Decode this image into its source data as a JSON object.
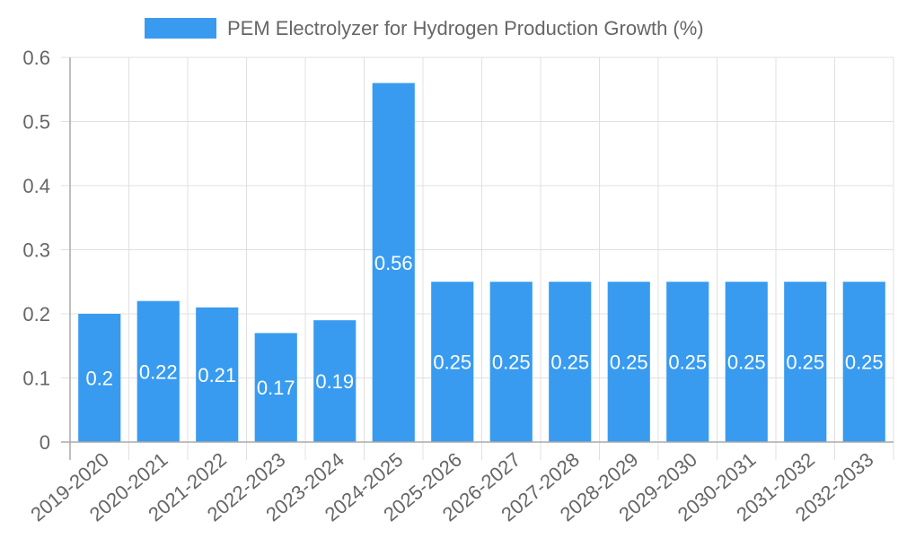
{
  "chart_data": {
    "type": "bar",
    "title": "",
    "xlabel": "",
    "ylabel": "",
    "ylim": [
      0,
      0.6
    ],
    "yticks": [
      "0",
      "0.1",
      "0.2",
      "0.3",
      "0.4",
      "0.5",
      "0.6"
    ],
    "grid": true,
    "legend_position": "top",
    "categories": [
      "2019-2020",
      "2020-2021",
      "2021-2022",
      "2022-2023",
      "2023-2024",
      "2024-2025",
      "2025-2026",
      "2026-2027",
      "2027-2028",
      "2028-2029",
      "2029-2030",
      "2030-2031",
      "2031-2032",
      "2032-2033"
    ],
    "series": [
      {
        "name": "PEM Electrolyzer for Hydrogen Production Growth (%)",
        "color": "#389bf0",
        "values": [
          0.2,
          0.22,
          0.21,
          0.17,
          0.19,
          0.56,
          0.25,
          0.25,
          0.25,
          0.25,
          0.25,
          0.25,
          0.25,
          0.25
        ],
        "data_labels": [
          "0.2",
          "0.22",
          "0.21",
          "0.17",
          "0.19",
          "0.56",
          "0.25",
          "0.25",
          "0.25",
          "0.25",
          "0.25",
          "0.25",
          "0.25",
          "0.25"
        ]
      }
    ]
  },
  "legend": {
    "label": "PEM Electrolyzer for Hydrogen Production Growth (%)",
    "swatch_color": "#389bf0"
  },
  "colors": {
    "bar": "#389bf0",
    "grid": "#e0e0e0",
    "axis": "#aaaaaa",
    "tick_text": "#666666",
    "data_label": "#ffffff"
  }
}
